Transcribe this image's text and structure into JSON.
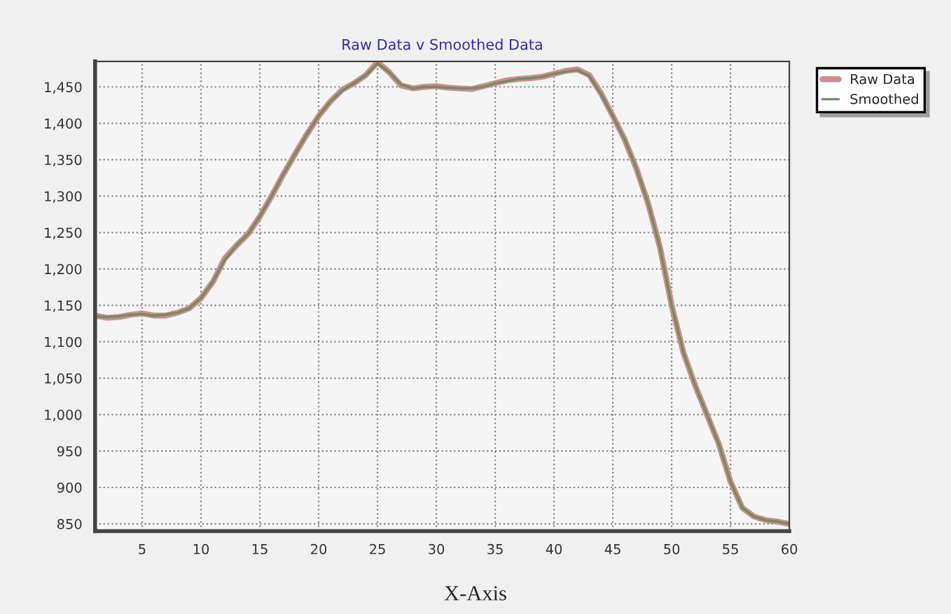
{
  "chart_data": {
    "type": "line",
    "title": "Raw Data v Smoothed Data",
    "xlabel": "X-Axis",
    "x": [
      1,
      2,
      3,
      4,
      5,
      6,
      7,
      8,
      9,
      10,
      11,
      12,
      13,
      14,
      15,
      16,
      17,
      18,
      19,
      20,
      21,
      22,
      23,
      24,
      25,
      26,
      27,
      28,
      29,
      30,
      31,
      32,
      33,
      34,
      35,
      36,
      37,
      38,
      39,
      40,
      41,
      42,
      43,
      44,
      45,
      46,
      47,
      48,
      49,
      50,
      51,
      52,
      53,
      54,
      55,
      56,
      57,
      58,
      59,
      60
    ],
    "series": [
      {
        "name": "Raw Data",
        "color": "#d08c8c",
        "values": [
          1136,
          1133,
          1134,
          1137,
          1139,
          1136,
          1136,
          1140,
          1146,
          1160,
          1182,
          1214,
          1232,
          1248,
          1272,
          1300,
          1330,
          1358,
          1385,
          1410,
          1430,
          1446,
          1455,
          1466,
          1484,
          1470,
          1452,
          1448,
          1450,
          1451,
          1449,
          1448,
          1447,
          1451,
          1455,
          1459,
          1461,
          1462,
          1464,
          1468,
          1472,
          1474,
          1466,
          1441,
          1410,
          1378,
          1338,
          1290,
          1230,
          1150,
          1085,
          1040,
          1000,
          960,
          908,
          872,
          860,
          855,
          853,
          850
        ]
      },
      {
        "name": "Smoothed",
        "color": "#6b8f5e",
        "values": [
          1135,
          1134,
          1135,
          1137,
          1138,
          1136,
          1137,
          1140,
          1146,
          1160,
          1182,
          1212,
          1232,
          1248,
          1272,
          1300,
          1330,
          1358,
          1385,
          1410,
          1430,
          1445,
          1455,
          1466,
          1482,
          1470,
          1453,
          1448,
          1450,
          1450,
          1449,
          1448,
          1448,
          1450,
          1455,
          1458,
          1461,
          1462,
          1464,
          1468,
          1471,
          1473,
          1465,
          1440,
          1410,
          1378,
          1338,
          1290,
          1230,
          1150,
          1085,
          1040,
          1000,
          960,
          908,
          872,
          860,
          855,
          853,
          850
        ]
      }
    ],
    "xlim": [
      1,
      60
    ],
    "xticks": [
      5,
      10,
      15,
      20,
      25,
      30,
      35,
      40,
      45,
      50,
      55,
      60
    ],
    "ylim": [
      840,
      1485
    ],
    "yticks": [
      {
        "value": 850,
        "label": "850"
      },
      {
        "value": 900,
        "label": "900"
      },
      {
        "value": 950,
        "label": "950"
      },
      {
        "value": 1000,
        "label": "1,000"
      },
      {
        "value": 1050,
        "label": "1,050"
      },
      {
        "value": 1100,
        "label": "1,100"
      },
      {
        "value": 1150,
        "label": "1,150"
      },
      {
        "value": 1200,
        "label": "1,200"
      },
      {
        "value": 1250,
        "label": "1,250"
      },
      {
        "value": 1300,
        "label": "1,300"
      },
      {
        "value": 1350,
        "label": "1,350"
      },
      {
        "value": 1400,
        "label": "1,400"
      },
      {
        "value": 1450,
        "label": "1,450"
      }
    ],
    "grid": true,
    "legend": "top right",
    "line_style": "solid"
  }
}
